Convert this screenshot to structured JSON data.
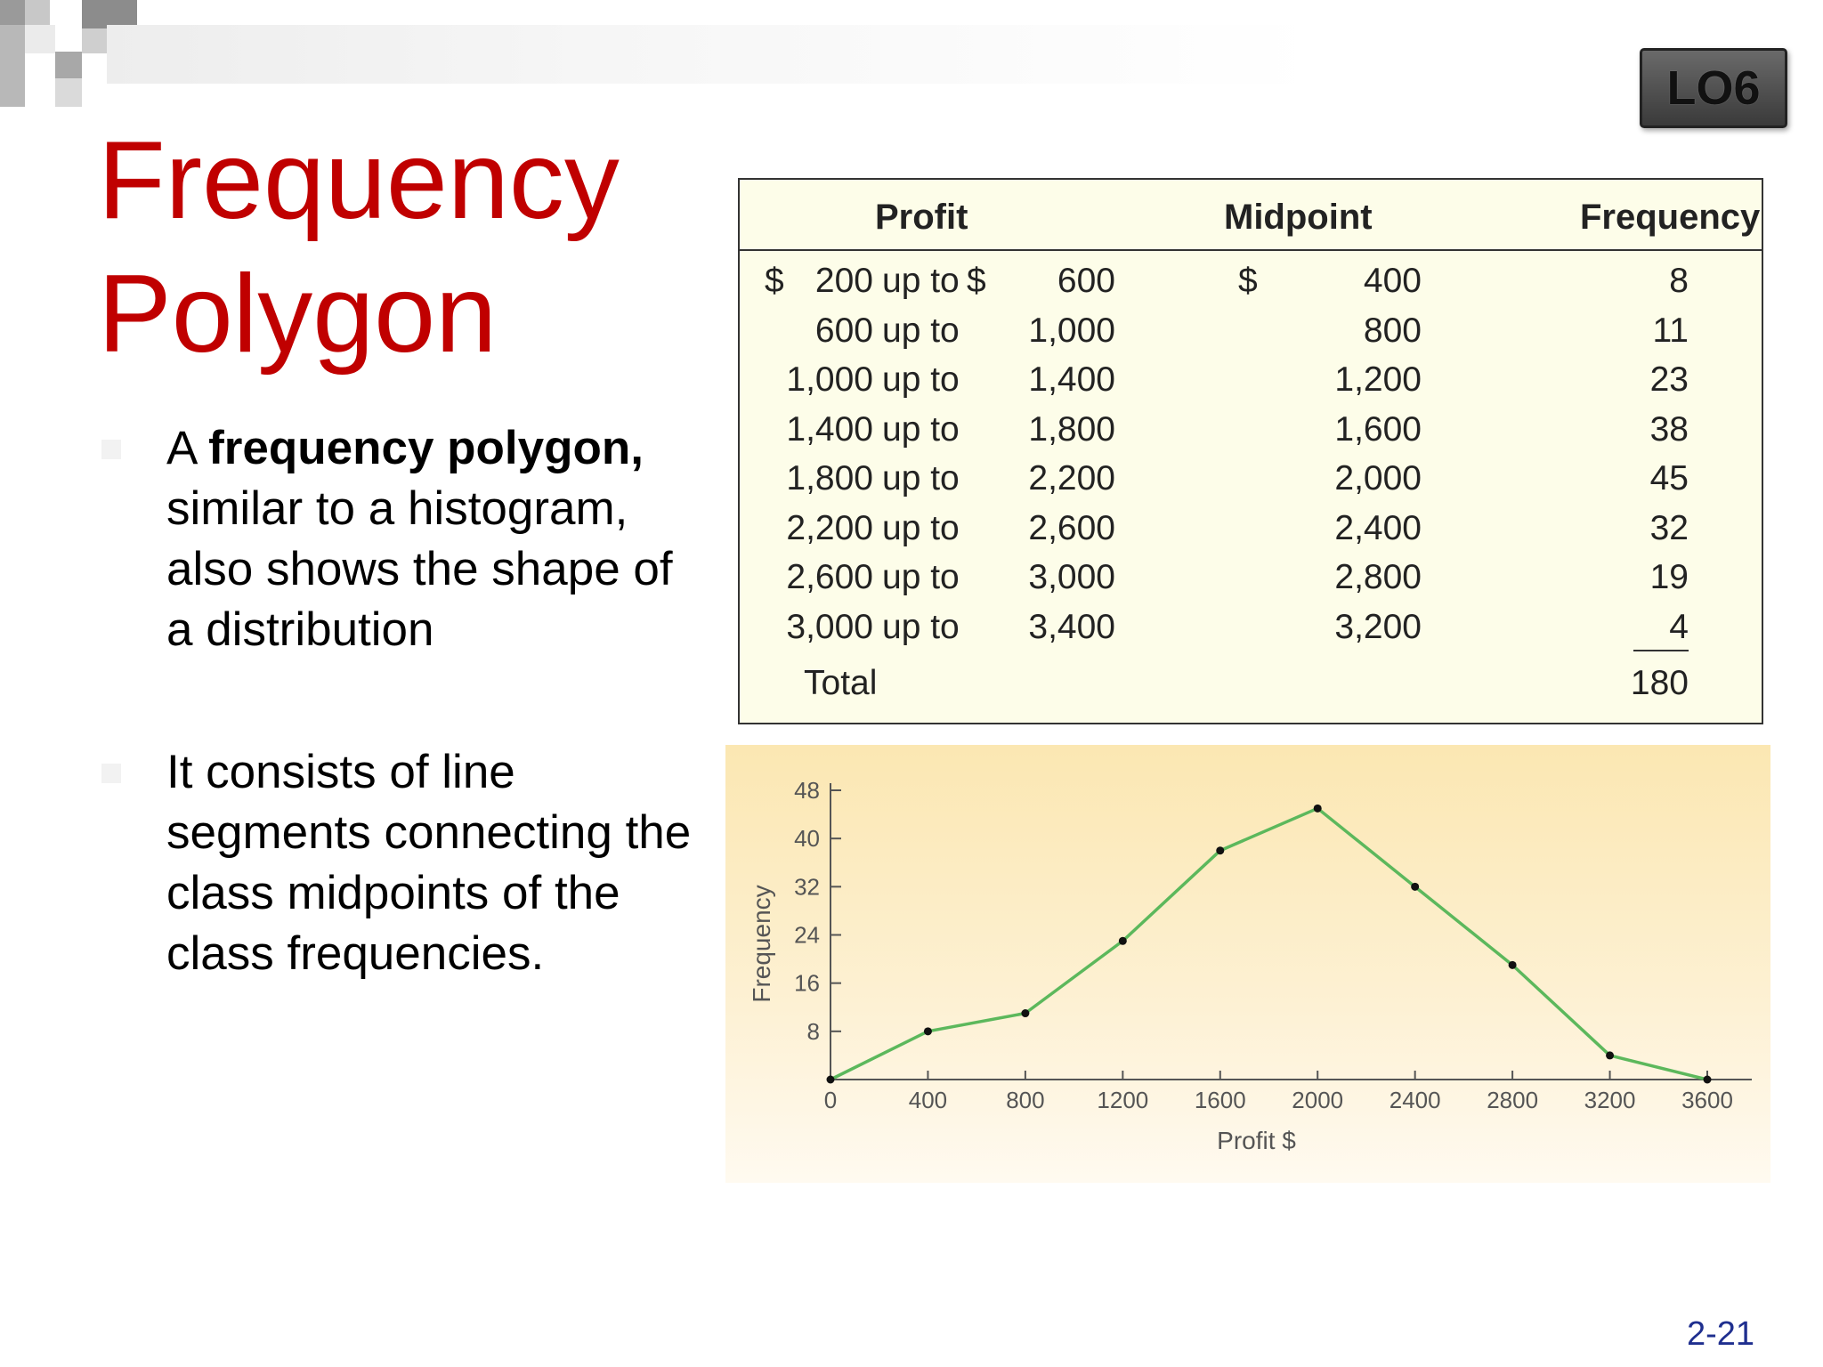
{
  "badge": {
    "label": "LO6"
  },
  "title": {
    "line1": "Frequency",
    "line2": "Polygon"
  },
  "bullets": [
    {
      "pre": "A ",
      "bold": "frequency polygon,",
      "post": " similar to a histogram, also shows the shape of a distribution"
    },
    {
      "pre": "It consists of line segments connecting the class midpoints of the class frequencies.",
      "bold": "",
      "post": ""
    }
  ],
  "table": {
    "headers": {
      "profit": "Profit",
      "midpoint": "Midpoint",
      "frequency": "Frequency"
    },
    "rows": [
      {
        "dollar": "$",
        "low": "200",
        "upto": "up to",
        "dollar2": "$",
        "high": "600",
        "mdollar": "$",
        "mid": "400",
        "freq": "8"
      },
      {
        "dollar": "",
        "low": "600",
        "upto": "up to",
        "dollar2": "",
        "high": "1,000",
        "mdollar": "",
        "mid": "800",
        "freq": "11"
      },
      {
        "dollar": "",
        "low": "1,000",
        "upto": "up to",
        "dollar2": "",
        "high": "1,400",
        "mdollar": "",
        "mid": "1,200",
        "freq": "23"
      },
      {
        "dollar": "",
        "low": "1,400",
        "upto": "up to",
        "dollar2": "",
        "high": "1,800",
        "mdollar": "",
        "mid": "1,600",
        "freq": "38"
      },
      {
        "dollar": "",
        "low": "1,800",
        "upto": "up to",
        "dollar2": "",
        "high": "2,200",
        "mdollar": "",
        "mid": "2,000",
        "freq": "45"
      },
      {
        "dollar": "",
        "low": "2,200",
        "upto": "up to",
        "dollar2": "",
        "high": "2,600",
        "mdollar": "",
        "mid": "2,400",
        "freq": "32"
      },
      {
        "dollar": "",
        "low": "2,600",
        "upto": "up to",
        "dollar2": "",
        "high": "3,000",
        "mdollar": "",
        "mid": "2,800",
        "freq": "19"
      },
      {
        "dollar": "",
        "low": "3,000",
        "upto": "up to",
        "dollar2": "",
        "high": "3,400",
        "mdollar": "",
        "mid": "3,200",
        "freq": "4"
      }
    ],
    "total_label": "Total",
    "total_value": "180"
  },
  "chart_data": {
    "type": "line",
    "x": [
      0,
      400,
      800,
      1200,
      1600,
      2000,
      2400,
      2800,
      3200,
      3600
    ],
    "series": [
      {
        "values": [
          0,
          8,
          11,
          23,
          38,
          45,
          32,
          19,
          4,
          0
        ]
      }
    ],
    "xlabel": "Profit $",
    "ylabel": "Frequency",
    "xlim": [
      0,
      3600
    ],
    "ylim": [
      0,
      48
    ],
    "xticks": [
      "0",
      "400",
      "800",
      "1200",
      "1600",
      "2000",
      "2400",
      "2800",
      "3200",
      "3600"
    ],
    "yticks": [
      "8",
      "16",
      "24",
      "32",
      "40",
      "48"
    ],
    "grid": false,
    "line_color": "#5cb85c",
    "marker_color": "#111111"
  },
  "page": {
    "number": "2-21"
  }
}
